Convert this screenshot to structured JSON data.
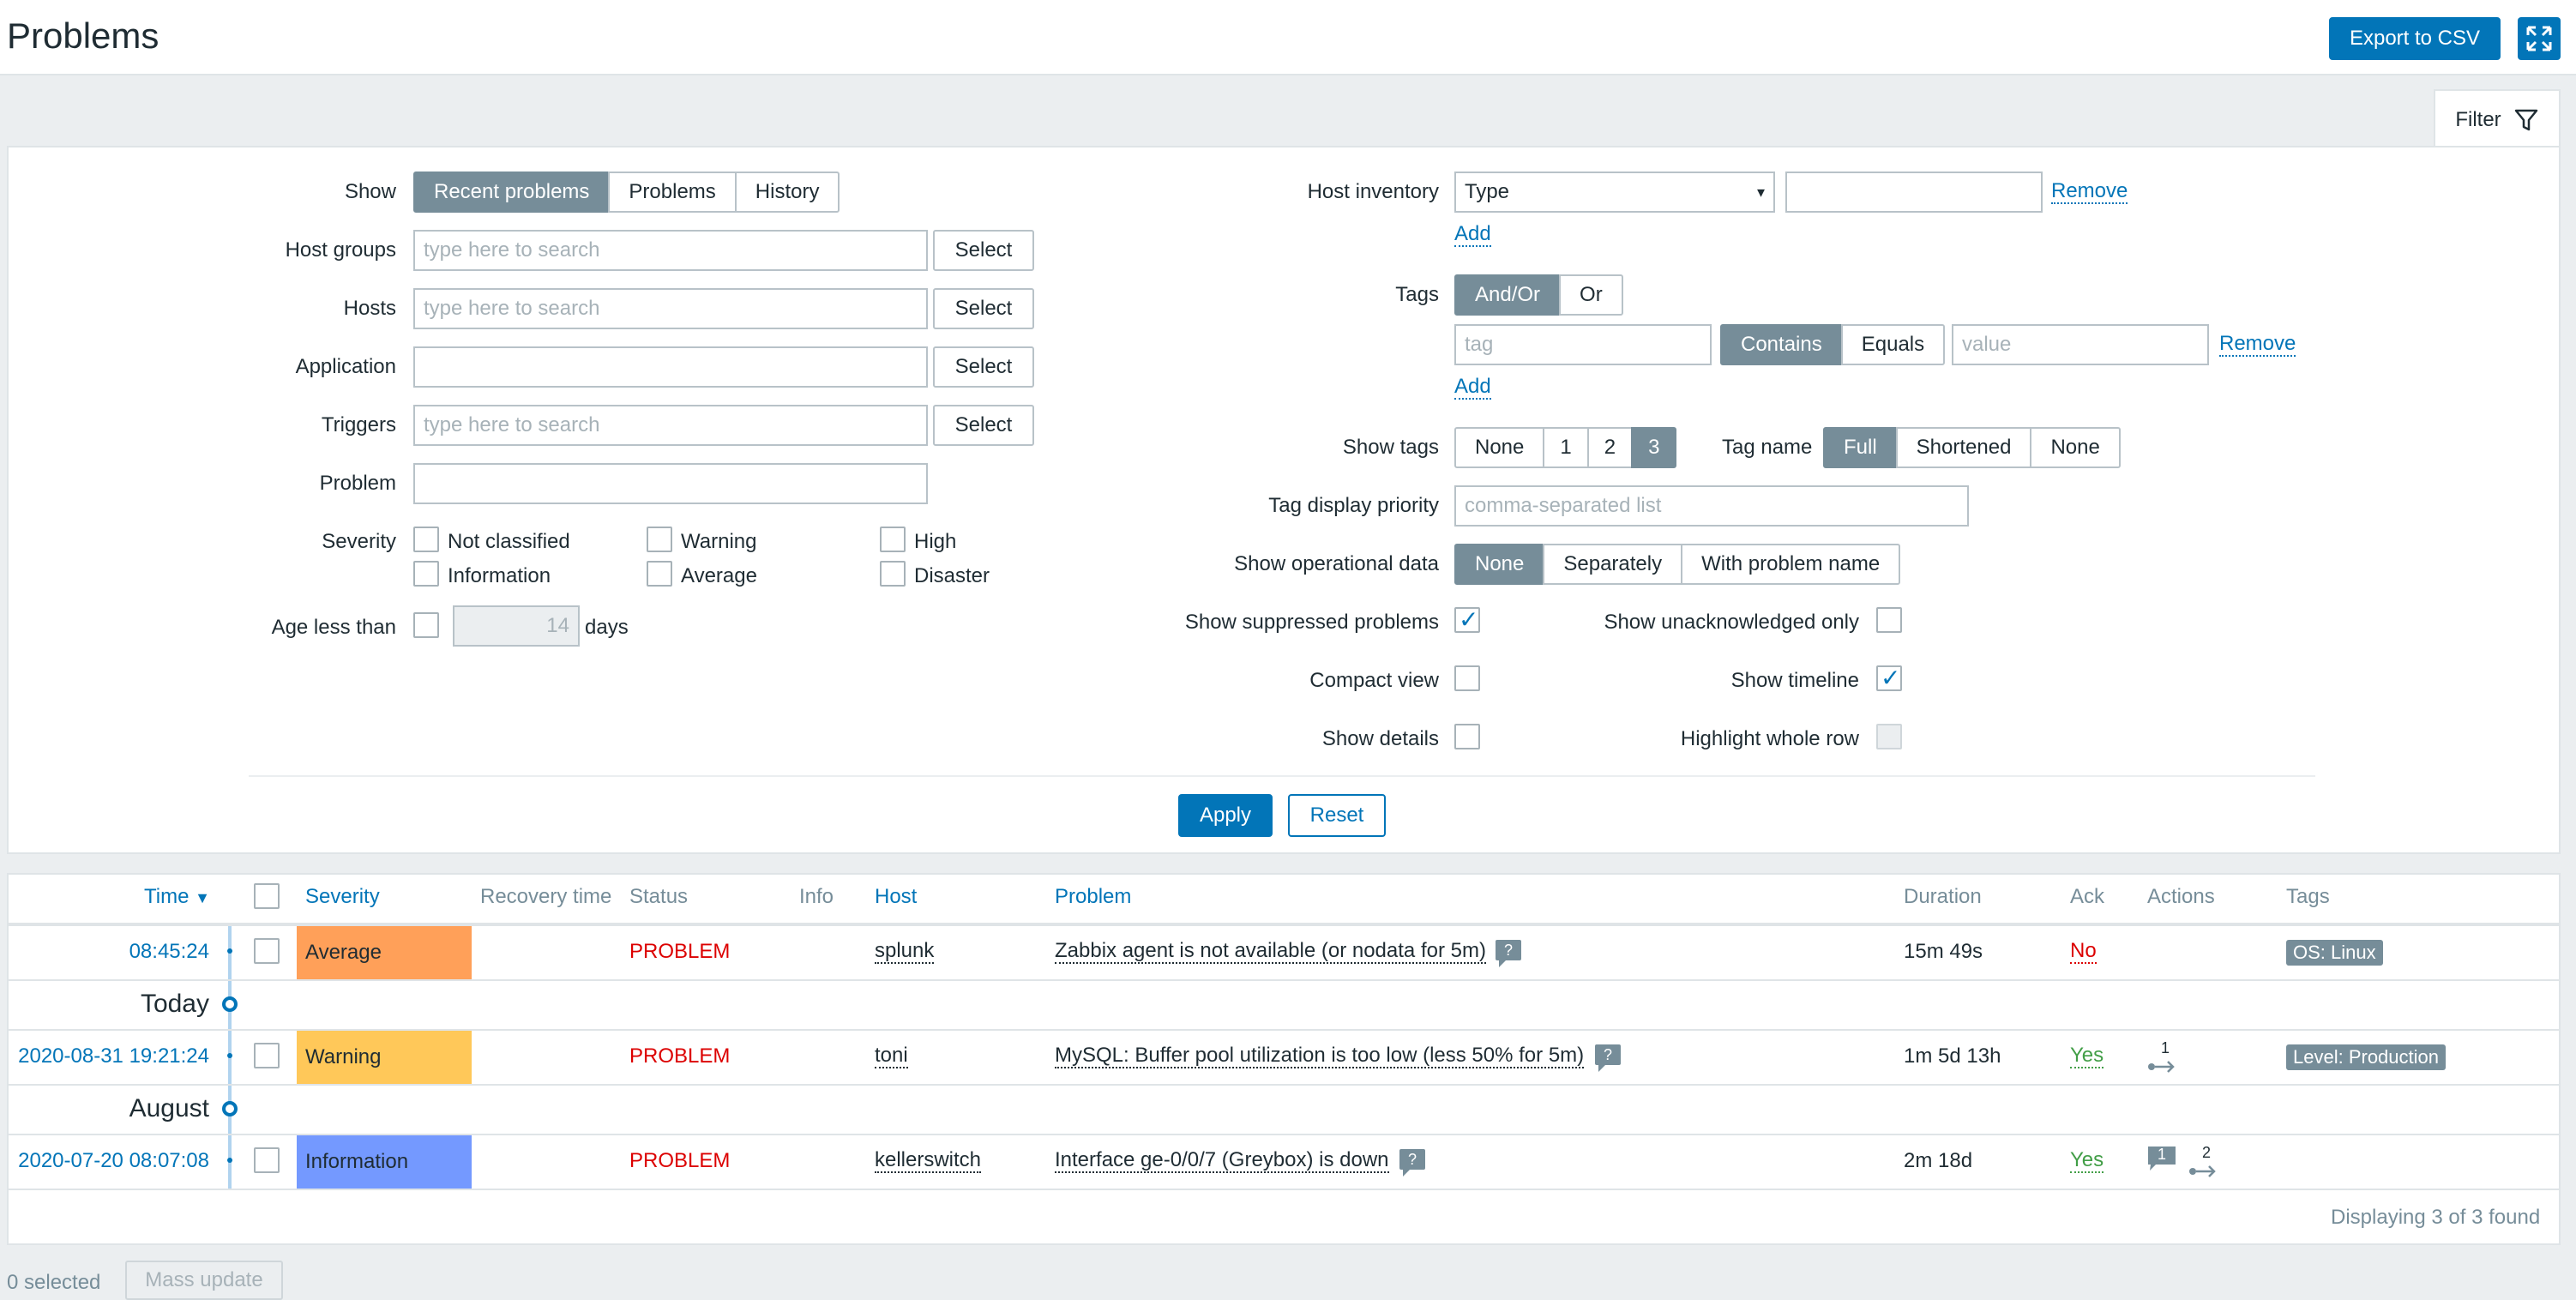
{
  "header": {
    "title": "Problems",
    "export_label": "Export to CSV",
    "kiosk_icon": "fullscreen-icon"
  },
  "filter_tab": {
    "label": "Filter",
    "icon": "funnel-icon"
  },
  "filter": {
    "show": {
      "label": "Show",
      "options": [
        "Recent problems",
        "Problems",
        "History"
      ],
      "selected": "Recent problems"
    },
    "host_groups": {
      "label": "Host groups",
      "placeholder": "type here to search",
      "button": "Select"
    },
    "hosts": {
      "label": "Hosts",
      "placeholder": "type here to search",
      "button": "Select"
    },
    "application": {
      "label": "Application",
      "value": "",
      "button": "Select"
    },
    "triggers": {
      "label": "Triggers",
      "placeholder": "type here to search",
      "button": "Select"
    },
    "problem": {
      "label": "Problem",
      "value": ""
    },
    "severity": {
      "label": "Severity",
      "options": [
        "Not classified",
        "Warning",
        "High",
        "Information",
        "Average",
        "Disaster"
      ]
    },
    "age": {
      "label": "Age less than",
      "value": "14",
      "unit": "days"
    },
    "host_inventory": {
      "label": "Host inventory",
      "field": "Type",
      "value": "",
      "remove": "Remove",
      "add": "Add"
    },
    "tags": {
      "label": "Tags",
      "logic": [
        "And/Or",
        "Or"
      ],
      "tag_placeholder": "tag",
      "operator": [
        "Contains",
        "Equals"
      ],
      "value_placeholder": "value",
      "remove": "Remove",
      "add": "Add"
    },
    "show_tags": {
      "label": "Show tags",
      "options": [
        "None",
        "1",
        "2",
        "3"
      ],
      "selected": "3"
    },
    "tag_name": {
      "label": "Tag name",
      "options": [
        "Full",
        "Shortened",
        "None"
      ],
      "selected": "Full"
    },
    "tag_priority": {
      "label": "Tag display priority",
      "placeholder": "comma-separated list"
    },
    "operational_data": {
      "label": "Show operational data",
      "options": [
        "None",
        "Separately",
        "With problem name"
      ],
      "selected": "None"
    },
    "suppressed": {
      "label": "Show suppressed problems",
      "checked": true
    },
    "unacknowledged": {
      "label": "Show unacknowledged only",
      "checked": false
    },
    "compact": {
      "label": "Compact view",
      "checked": false
    },
    "timeline": {
      "label": "Show timeline",
      "checked": true
    },
    "details": {
      "label": "Show details",
      "checked": false
    },
    "highlight": {
      "label": "Highlight whole row",
      "checked": false
    },
    "apply": "Apply",
    "reset": "Reset"
  },
  "table": {
    "columns": {
      "time": "Time",
      "severity": "Severity",
      "recovery": "Recovery time",
      "status": "Status",
      "info": "Info",
      "host": "Host",
      "problem": "Problem",
      "duration": "Duration",
      "ack": "Ack",
      "actions": "Actions",
      "tags": "Tags"
    },
    "groups": [
      "Today",
      "August"
    ],
    "rows": [
      {
        "time": "08:45:24",
        "severity": "Average",
        "status": "PROBLEM",
        "host": "splunk",
        "problem": "Zabbix agent is not available (or nodata for 5m)",
        "duration": "15m 49s",
        "ack": "No",
        "tag": "OS: Linux"
      },
      {
        "time": "2020-08-31 19:21:24",
        "severity": "Warning",
        "status": "PROBLEM",
        "host": "toni",
        "problem": "MySQL: Buffer pool utilization is too low (less 50% for 5m)",
        "duration": "1m 5d 13h",
        "ack": "Yes",
        "actions_count": "1",
        "tag": "Level: Production"
      },
      {
        "time": "2020-07-20 08:07:08",
        "severity": "Information",
        "status": "PROBLEM",
        "host": "kellerswitch",
        "problem": "Interface ge-0/0/7 (Greybox) is down",
        "duration": "2m 18d",
        "ack": "Yes",
        "messages_count": "1",
        "actions_count": "2"
      }
    ],
    "hint_glyph": "?",
    "footer": "Displaying 3 of 3 found"
  },
  "bottom": {
    "selected": "0 selected",
    "mass_update": "Mass update"
  },
  "colors": {
    "accent": "#0275b8",
    "average": "#ffa059",
    "warning": "#ffc859",
    "information": "#7499ff",
    "problem": "#dc0000",
    "ack_yes": "#429e47"
  }
}
